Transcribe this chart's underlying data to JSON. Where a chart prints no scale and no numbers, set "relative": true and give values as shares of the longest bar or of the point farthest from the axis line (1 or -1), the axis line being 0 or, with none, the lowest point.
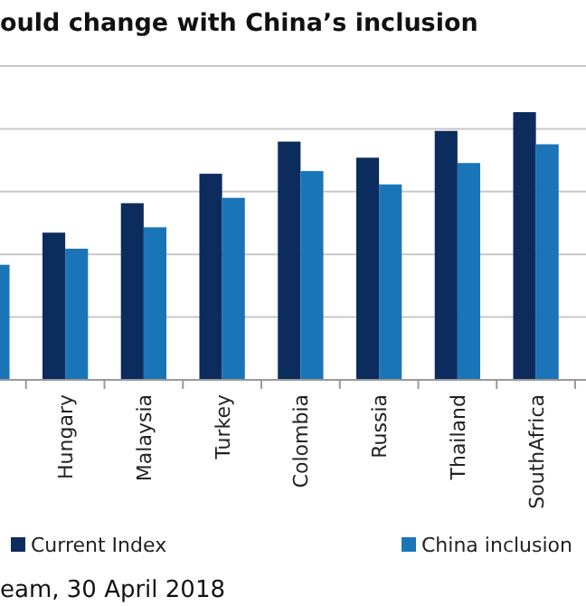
{
  "chart_data": {
    "type": "bar",
    "title": "ould change with China’s inclusion",
    "relative": true,
    "grid": true,
    "legend": "bottom",
    "categories": [
      null,
      "Hungary",
      "Malaysia",
      "Turkey",
      "Colombia",
      "Russia",
      "Thailand",
      "SouthAfrica"
    ],
    "series": [
      {
        "name": "Current Index",
        "color": "#0d2c5e",
        "values": [
          null,
          0.55,
          0.66,
          0.77,
          0.89,
          0.83,
          0.93,
          1
        ]
      },
      {
        "name": "China inclusion",
        "color": "#1a75b8",
        "values": [
          0.43,
          0.49,
          0.57,
          0.68,
          0.78,
          0.73,
          0.81,
          0.88
        ]
      }
    ],
    "annotations": [
      "eam, 30 April 2018"
    ]
  }
}
